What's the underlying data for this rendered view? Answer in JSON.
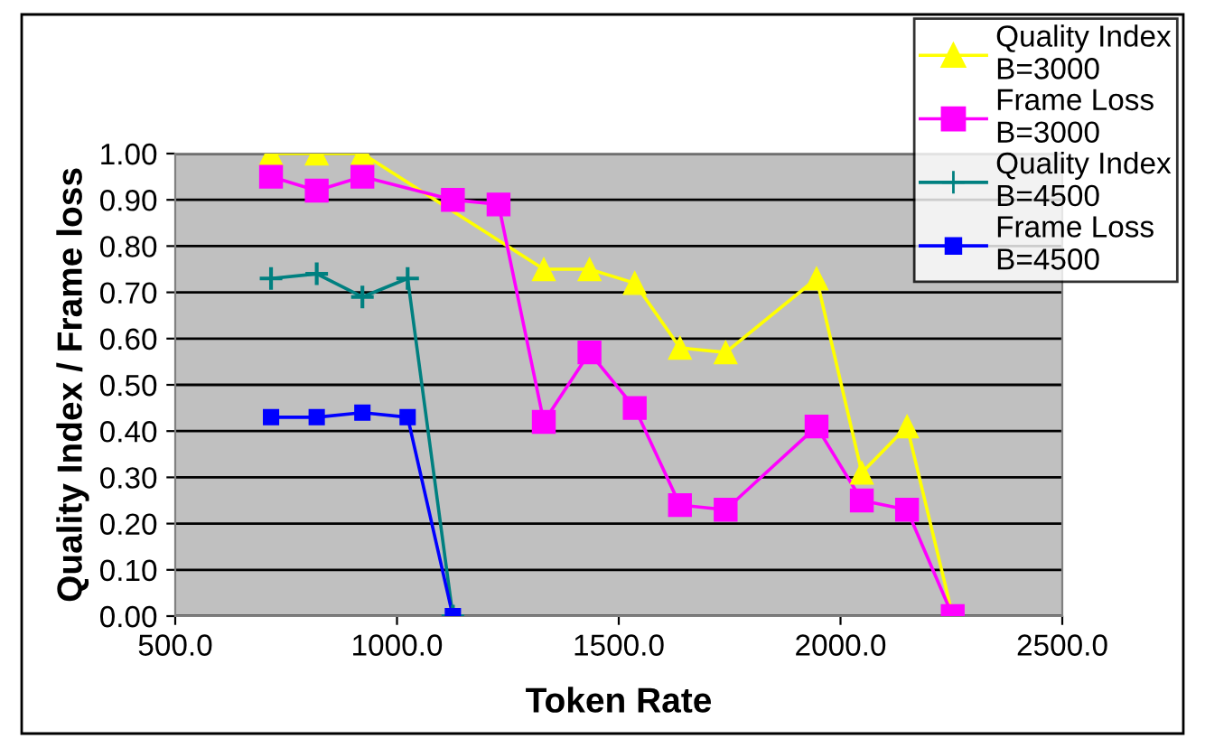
{
  "chart_data": {
    "type": "line",
    "xlabel": "Token Rate",
    "ylabel": "Quality Index / Frame loss",
    "xlim": [
      500,
      2500
    ],
    "xticks": [
      {
        "value": 500,
        "label": "500.0"
      },
      {
        "value": 1000,
        "label": "1000.0"
      },
      {
        "value": 1500,
        "label": "1500.0"
      },
      {
        "value": 2000,
        "label": "2000.0"
      },
      {
        "value": 2500,
        "label": "2500.0"
      }
    ],
    "ylim": [
      0,
      1
    ],
    "yticks": [
      {
        "value": 0,
        "label": "0.00"
      },
      {
        "value": 0.1,
        "label": "0.10"
      },
      {
        "value": 0.2,
        "label": "0.20"
      },
      {
        "value": 0.3,
        "label": "0.30"
      },
      {
        "value": 0.4,
        "label": "0.40"
      },
      {
        "value": 0.5,
        "label": "0.50"
      },
      {
        "value": 0.6,
        "label": "0.60"
      },
      {
        "value": 0.7,
        "label": "0.70"
      },
      {
        "value": 0.8,
        "label": "0.80"
      },
      {
        "value": 0.9,
        "label": "0.90"
      },
      {
        "value": 1.0,
        "label": "1.00"
      }
    ],
    "grid": "y",
    "legend": "top right",
    "series": [
      {
        "name": "Quality Index\nB=3000",
        "color": "#ffff00",
        "marker": "triangle",
        "x": [
          716,
          819,
          922,
          1331,
          1434,
          1536,
          1638,
          1741,
          1946,
          2048,
          2150,
          2253
        ],
        "values": [
          1.0,
          1.0,
          1.0,
          0.75,
          0.75,
          0.72,
          0.58,
          0.57,
          0.73,
          0.31,
          0.41,
          0.0
        ]
      },
      {
        "name": "Frame Loss\nB=3000",
        "color": "#ff00ff",
        "marker": "square",
        "x": [
          716,
          819,
          922,
          1126,
          1229,
          1331,
          1434,
          1536,
          1638,
          1741,
          1946,
          2048,
          2150,
          2253
        ],
        "values": [
          0.95,
          0.92,
          0.95,
          0.9,
          0.89,
          0.42,
          0.57,
          0.45,
          0.24,
          0.23,
          0.41,
          0.25,
          0.23,
          0.0
        ]
      },
      {
        "name": "Quality Index\nB=4500",
        "color": "#008080",
        "marker": "cross",
        "x": [
          716,
          819,
          922,
          1024,
          1126
        ],
        "values": [
          0.73,
          0.74,
          0.69,
          0.73,
          0.0
        ]
      },
      {
        "name": "Frame Loss\nB=4500",
        "color": "#0000ff",
        "marker": "square",
        "x": [
          716,
          819,
          922,
          1024,
          1126
        ],
        "values": [
          0.43,
          0.43,
          0.44,
          0.43,
          0.0
        ]
      }
    ]
  }
}
